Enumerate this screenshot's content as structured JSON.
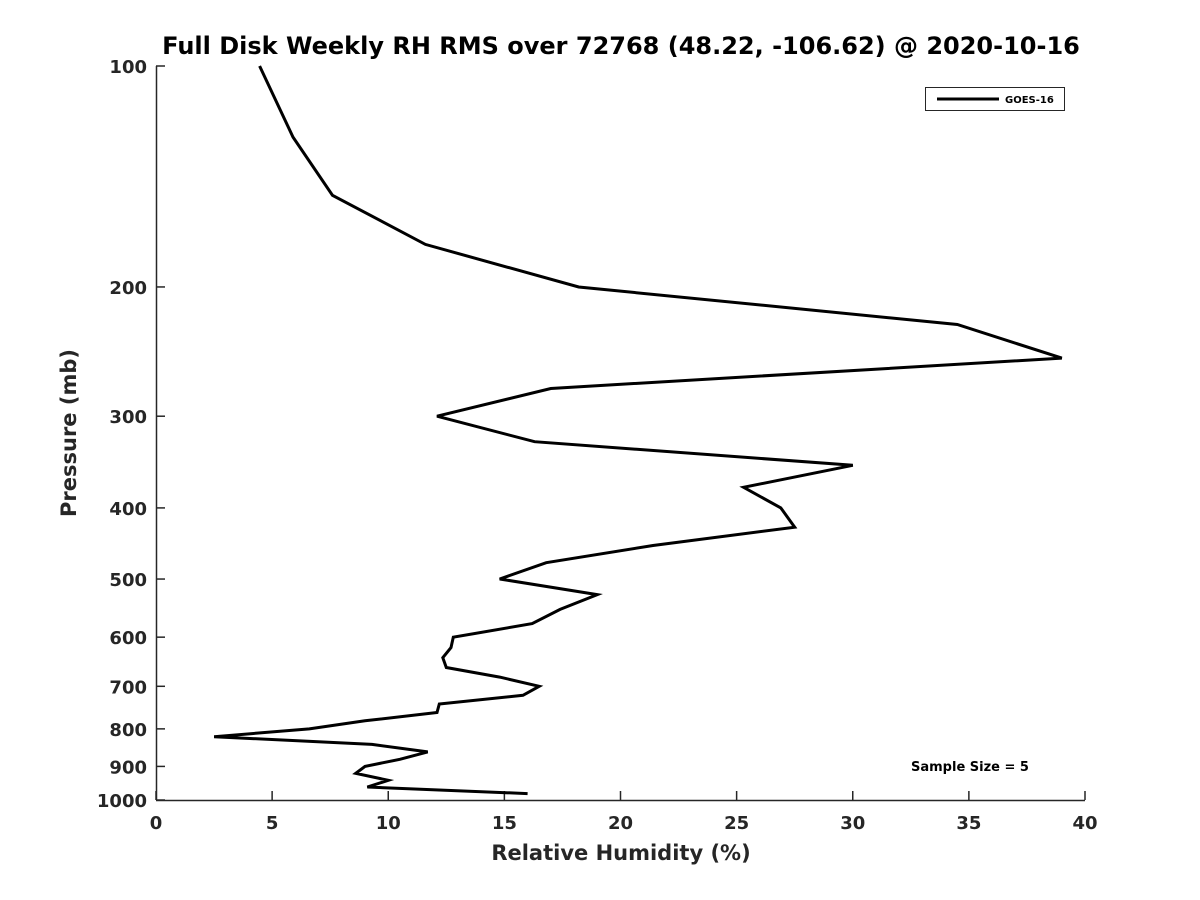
{
  "chart_data": {
    "type": "line",
    "title": "Full Disk Weekly RH RMS over 72768 (48.22, -106.62) @ 2020-10-16",
    "xlabel": "Relative Humidity (%)",
    "ylabel": "Pressure (mb)",
    "xlim": [
      0,
      40
    ],
    "ylim": [
      100,
      1000
    ],
    "y_scale": "log",
    "y_reversed": true,
    "x_ticks": [
      0,
      5,
      10,
      15,
      20,
      25,
      30,
      35,
      40
    ],
    "y_ticks": [
      100,
      200,
      300,
      400,
      500,
      600,
      700,
      800,
      900,
      1000
    ],
    "grid": false,
    "legend_position": "top-right",
    "series": [
      {
        "name": "GOES-16",
        "color": "#000000",
        "points": [
          [
            4.46,
            100
          ],
          [
            5.9,
            125
          ],
          [
            7.6,
            150
          ],
          [
            11.6,
            175
          ],
          [
            18.2,
            200
          ],
          [
            34.5,
            225
          ],
          [
            39.0,
            250
          ],
          [
            17.0,
            275
          ],
          [
            12.1,
            300
          ],
          [
            16.3,
            325
          ],
          [
            30.0,
            350
          ],
          [
            25.3,
            375
          ],
          [
            26.9,
            400
          ],
          [
            27.5,
            425
          ],
          [
            21.4,
            450
          ],
          [
            16.8,
            475
          ],
          [
            14.8,
            500
          ],
          [
            19.0,
            525
          ],
          [
            17.4,
            550
          ],
          [
            16.2,
            575
          ],
          [
            12.8,
            600
          ],
          [
            12.7,
            620
          ],
          [
            12.35,
            640
          ],
          [
            12.5,
            660
          ],
          [
            14.8,
            680
          ],
          [
            16.5,
            700
          ],
          [
            15.8,
            720
          ],
          [
            12.2,
            740
          ],
          [
            12.1,
            760
          ],
          [
            9.0,
            780
          ],
          [
            6.6,
            800
          ],
          [
            2.5,
            820
          ],
          [
            9.3,
            840
          ],
          [
            11.7,
            860
          ],
          [
            10.5,
            880
          ],
          [
            9.0,
            900
          ],
          [
            8.6,
            920
          ],
          [
            10.0,
            940
          ],
          [
            9.1,
            960
          ],
          [
            16.0,
            980
          ]
        ]
      }
    ],
    "annotations": [
      "Sample Size = 5"
    ]
  }
}
